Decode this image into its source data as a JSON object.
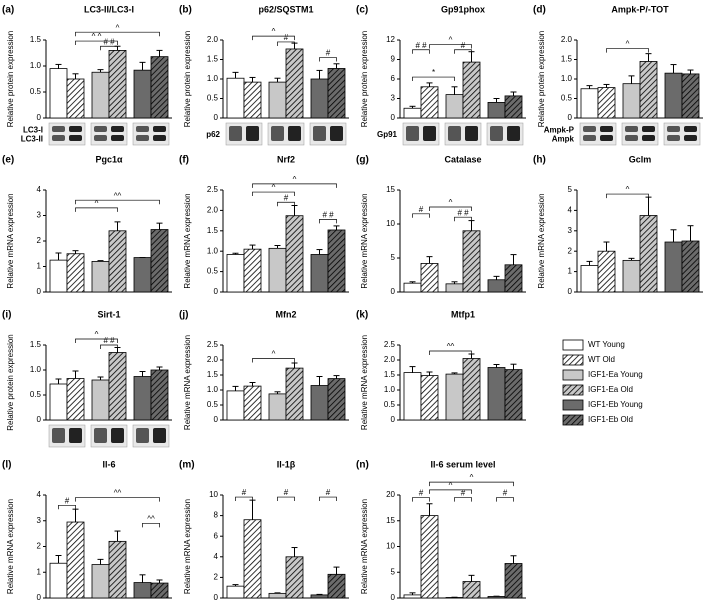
{
  "groups": [
    {
      "name": "WT Young",
      "color": "#ffffff",
      "hatched": false
    },
    {
      "name": "WT Old",
      "color": "#ffffff",
      "hatched": true
    },
    {
      "name": "IGF1-Ea Young",
      "color": "#c8c8c8",
      "hatched": false
    },
    {
      "name": "IGF1-Ea Old",
      "color": "#c8c8c8",
      "hatched": true
    },
    {
      "name": "IGF1-Eb Young",
      "color": "#6b6b6b",
      "hatched": false
    },
    {
      "name": "IGF1-Eb Old",
      "color": "#6b6b6b",
      "hatched": true
    }
  ],
  "chart_data": [
    {
      "type": "bar",
      "panel": "(a)",
      "title": "LC3-II/LC3-I",
      "ylabel": "Relative protein expression",
      "values": [
        0.95,
        0.75,
        0.88,
        1.3,
        0.92,
        1.18
      ],
      "errors": [
        0.08,
        0.1,
        0.05,
        0.08,
        0.15,
        0.12
      ],
      "ylim": [
        0,
        1.5
      ],
      "yticks": [
        0,
        0.5,
        {
          "value": 1,
          "label": "1.0"
        },
        1.5
      ],
      "blot": true,
      "blot_labels": [
        "LC3-I",
        "LC3-II"
      ],
      "annotations": [
        {
          "text": "^ ^",
          "bars": [
            1,
            3
          ],
          "y": 1.48
        },
        {
          "text": "^",
          "bars": [
            1,
            5
          ],
          "y": 1.65
        },
        {
          "text": "# #",
          "bars": [
            2,
            3
          ],
          "y": 1.38
        }
      ]
    },
    {
      "type": "bar",
      "panel": "(b)",
      "title": "p62/SQSTM1",
      "ylabel": "Relative protein expression",
      "values": [
        1.02,
        0.92,
        0.92,
        1.77,
        1.0,
        1.27
      ],
      "errors": [
        0.15,
        0.12,
        0.1,
        0.15,
        0.22,
        0.12
      ],
      "ylim": [
        0,
        2
      ],
      "yticks": [
        0,
        0.5,
        {
          "value": 1,
          "label": "1.0"
        },
        1.5,
        {
          "value": 2,
          "label": "2.0"
        }
      ],
      "blot": true,
      "blot_labels": [
        "p62"
      ],
      "annotations": [
        {
          "text": "^",
          "bars": [
            1,
            3
          ],
          "y": 2.1
        },
        {
          "text": "#",
          "bars": [
            2,
            3
          ],
          "y": 1.95
        },
        {
          "text": "#",
          "bars": [
            4,
            5
          ],
          "y": 1.55
        }
      ]
    },
    {
      "type": "bar",
      "panel": "(c)",
      "title": "Gp91phox",
      "ylabel": "Relative protein expression",
      "values": [
        1.5,
        4.8,
        3.6,
        8.6,
        2.4,
        3.4
      ],
      "errors": [
        0.3,
        0.6,
        1.2,
        1.6,
        0.6,
        0.6
      ],
      "ylim": [
        0,
        12
      ],
      "yticks": [
        0,
        3,
        6,
        9,
        12
      ],
      "blot": true,
      "blot_labels": [
        "Gp91"
      ],
      "annotations": [
        {
          "text": "# #",
          "bars": [
            0,
            1
          ],
          "y": 10.5
        },
        {
          "text": "^",
          "bars": [
            1,
            3
          ],
          "y": 11.3
        },
        {
          "text": "#",
          "bars": [
            2,
            3
          ],
          "y": 10.5
        },
        {
          "text": "*",
          "bars": [
            0,
            2
          ],
          "y": 6.3
        }
      ]
    },
    {
      "type": "bar",
      "panel": "(d)",
      "title": "Ampk-P/-TOT",
      "ylabel": "Relative protein expression",
      "values": [
        0.75,
        0.78,
        0.88,
        1.45,
        1.15,
        1.13
      ],
      "errors": [
        0.08,
        0.08,
        0.2,
        0.2,
        0.22,
        0.1
      ],
      "ylim": [
        0,
        2
      ],
      "yticks": [
        0,
        0.5,
        {
          "value": 1,
          "label": "1.0"
        },
        1.5,
        {
          "value": 2,
          "label": "2.0"
        }
      ],
      "blot": true,
      "blot_labels": [
        "Ampk-P",
        "Ampk"
      ],
      "annotations": [
        {
          "text": "^",
          "bars": [
            1,
            3
          ],
          "y": 1.78
        }
      ]
    },
    {
      "type": "bar",
      "panel": "(e)",
      "title": "Pgc1α",
      "ylabel": "Relative mRNA expression",
      "values": [
        1.25,
        1.5,
        1.2,
        2.4,
        1.35,
        2.45
      ],
      "errors": [
        0.28,
        0.12,
        0.03,
        0.35,
        0,
        0.25
      ],
      "ylim": [
        0,
        4
      ],
      "yticks": [
        0,
        1,
        2,
        3,
        4
      ],
      "annotations": [
        {
          "text": "^",
          "bars": [
            1,
            3
          ],
          "y": 3.3
        },
        {
          "text": "^^",
          "bars": [
            1,
            5
          ],
          "y": 3.6
        }
      ]
    },
    {
      "type": "bar",
      "panel": "(f)",
      "title": "Nrf2",
      "ylabel": "Relative mRNA expression",
      "values": [
        0.92,
        1.05,
        1.07,
        1.87,
        0.92,
        1.52
      ],
      "errors": [
        0.03,
        0.1,
        0.07,
        0.25,
        0.12,
        0.1
      ],
      "ylim": [
        0,
        2.5
      ],
      "yticks": [
        0,
        0.5,
        {
          "value": 1,
          "label": "1.0"
        },
        1.5,
        {
          "value": 2,
          "label": "2.0"
        },
        2.5
      ],
      "annotations": [
        {
          "text": "^",
          "bars": [
            1,
            3
          ],
          "y": 2.45
        },
        {
          "text": "#",
          "bars": [
            2,
            3
          ],
          "y": 2.2
        },
        {
          "text": "^",
          "bars": [
            1,
            5
          ],
          "y": 2.65
        },
        {
          "text": "# #",
          "bars": [
            4,
            5
          ],
          "y": 1.78
        }
      ]
    },
    {
      "type": "bar",
      "panel": "(g)",
      "title": "Catalase",
      "ylabel": "Relative mRNA expression",
      "values": [
        1.3,
        4.2,
        1.2,
        9.0,
        1.8,
        4.0
      ],
      "errors": [
        0.2,
        1,
        0.3,
        1.5,
        0.5,
        1.5
      ],
      "ylim": [
        0,
        15
      ],
      "yticks": [
        0,
        5,
        10,
        15
      ],
      "annotations": [
        {
          "text": "#",
          "bars": [
            0,
            1
          ],
          "y": 11.5
        },
        {
          "text": "^",
          "bars": [
            1,
            3
          ],
          "y": 12.5
        },
        {
          "text": "# #",
          "bars": [
            2,
            3
          ],
          "y": 11
        }
      ]
    },
    {
      "type": "bar",
      "panel": "(h)",
      "title": "Gclm",
      "ylabel": "Relative mRNA expression",
      "values": [
        1.3,
        2.0,
        1.55,
        3.75,
        2.45,
        2.5
      ],
      "errors": [
        0.2,
        0.45,
        0.1,
        0.9,
        0.6,
        0.75
      ],
      "ylim": [
        0,
        5
      ],
      "yticks": [
        0,
        1,
        2,
        3,
        4,
        5
      ],
      "annotations": [
        {
          "text": "^",
          "bars": [
            1,
            3
          ],
          "y": 4.8
        }
      ]
    },
    {
      "type": "bar",
      "panel": "(i)",
      "title": "Sirt-1",
      "ylabel": "Relative protein expression",
      "values": [
        0.72,
        0.83,
        0.8,
        1.35,
        0.87,
        1.0
      ],
      "errors": [
        0.1,
        0.15,
        0.06,
        0.1,
        0.1,
        0.06
      ],
      "ylim": [
        0,
        1.5
      ],
      "yticks": [
        0,
        0.5,
        {
          "value": 1,
          "label": "1.0"
        },
        1.5
      ],
      "blot": true,
      "annotations": [
        {
          "text": "^",
          "bars": [
            1,
            3
          ],
          "y": 1.62
        },
        {
          "text": "# #",
          "bars": [
            2,
            3
          ],
          "y": 1.5
        }
      ]
    },
    {
      "type": "bar",
      "panel": "(j)",
      "title": "Mfn2",
      "ylabel": "Relative mRNA expression",
      "values": [
        0.97,
        1.13,
        0.87,
        1.73,
        1.15,
        1.38
      ],
      "errors": [
        0.15,
        0.12,
        0.07,
        0.17,
        0.3,
        0.1
      ],
      "ylim": [
        0,
        2.5
      ],
      "yticks": [
        0,
        0.5,
        {
          "value": 1,
          "label": "1.0"
        },
        1.5,
        {
          "value": 2,
          "label": "2.0"
        },
        2.5
      ],
      "annotations": [
        {
          "text": "^",
          "bars": [
            1,
            3
          ],
          "y": 2.05
        }
      ]
    },
    {
      "type": "bar",
      "panel": "(k)",
      "title": "Mtfp1",
      "ylabel": "Relative mRNA expression",
      "values": [
        1.58,
        1.48,
        1.53,
        2.05,
        1.75,
        1.68
      ],
      "errors": [
        0.2,
        0.12,
        0.04,
        0.15,
        0.1,
        0.18
      ],
      "ylim": [
        0,
        2.5
      ],
      "yticks": [
        0,
        0.5,
        {
          "value": 1,
          "label": "1.0"
        },
        1.5,
        {
          "value": 2,
          "label": "2.0"
        },
        2.5
      ],
      "annotations": [
        {
          "text": "^^",
          "bars": [
            1,
            3
          ],
          "y": 2.3
        }
      ]
    },
    {
      "type": "bar",
      "panel": "(l)",
      "title": "Il-6",
      "ylabel": "Relative mRNA expression",
      "values": [
        1.35,
        2.95,
        1.3,
        2.2,
        0.6,
        0.58
      ],
      "errors": [
        0.3,
        0.5,
        0.2,
        0.4,
        0.3,
        0.12
      ],
      "ylim": [
        0,
        4
      ],
      "yticks": [
        0,
        1,
        2,
        3,
        4
      ],
      "annotations": [
        {
          "text": "#",
          "bars": [
            0,
            1
          ],
          "y": 3.6
        },
        {
          "text": "^^",
          "bars": [
            1,
            5
          ],
          "y": 3.9
        },
        {
          "text": "^^",
          "bars": [
            4,
            5
          ],
          "y": 2.9
        }
      ]
    },
    {
      "type": "bar",
      "panel": "(m)",
      "title": "Il-1β",
      "ylabel": "Relative mRNA expression",
      "values": [
        1.15,
        7.6,
        0.45,
        4.0,
        0.3,
        2.3
      ],
      "errors": [
        0.15,
        1.9,
        0.05,
        0.9,
        0.05,
        0.7
      ],
      "ylim": [
        0,
        10
      ],
      "yticks": [
        0,
        2,
        4,
        6,
        8,
        10
      ],
      "annotations": [
        {
          "text": "#",
          "bars": [
            0,
            1
          ],
          "y": 9.8
        },
        {
          "text": "#",
          "bars": [
            2,
            3
          ],
          "y": 9.8
        },
        {
          "text": "#",
          "bars": [
            4,
            5
          ],
          "y": 9.8
        }
      ]
    },
    {
      "type": "bar",
      "panel": "(n)",
      "title": "Il-6 serum level",
      "ylabel": "Relative mRNA expression",
      "values": [
        0.6,
        16,
        0.1,
        3.2,
        0.3,
        6.7
      ],
      "errors": [
        0.4,
        2.3,
        0.05,
        1.2,
        0.05,
        1.5
      ],
      "ylim": [
        0,
        20
      ],
      "yticks": [
        0,
        5,
        10,
        15,
        20
      ],
      "annotations": [
        {
          "text": "#",
          "bars": [
            0,
            1
          ],
          "y": 19.5
        },
        {
          "text": "#",
          "bars": [
            2,
            3
          ],
          "y": 19.5
        },
        {
          "text": "#",
          "bars": [
            4,
            5
          ],
          "y": 19.5
        },
        {
          "text": "^",
          "bars": [
            1,
            3
          ],
          "y": 21
        },
        {
          "text": "^",
          "bars": [
            1,
            5
          ],
          "y": 22.5
        }
      ]
    }
  ]
}
